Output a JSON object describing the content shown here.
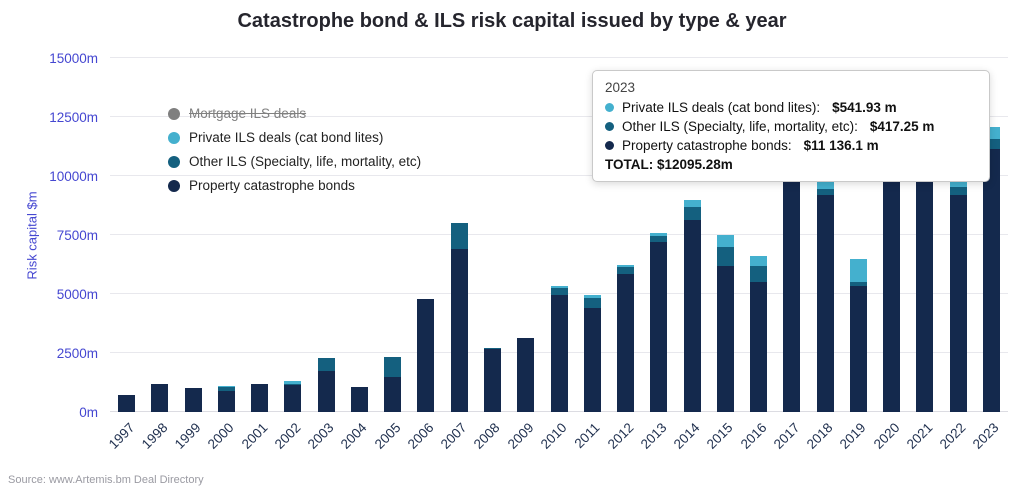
{
  "source": "Source: www.Artemis.bm Deal Directory",
  "legend": {
    "items": [
      {
        "id": "mortgage-ils",
        "label": "Mortgage ILS deals",
        "color": "#7f7f7f",
        "struck": true
      },
      {
        "id": "private-ils",
        "label": "Private ILS deals (cat bond lites)",
        "color": "#44b0ce",
        "struck": false
      },
      {
        "id": "other-ils",
        "label": "Other ILS (Specialty, life, mortality, etc)",
        "color": "#14607f",
        "struck": false
      },
      {
        "id": "property-cat-bonds",
        "label": "Property catastrophe bonds",
        "color": "#14294d",
        "struck": false
      }
    ]
  },
  "tooltip": {
    "year": "2023",
    "rows": [
      {
        "dot": "#44b0ce",
        "label": "Private ILS deals (cat bond lites):",
        "value": "$541.93 m"
      },
      {
        "dot": "#14607f",
        "label": "Other ILS (Specialty, life, mortality, etc):",
        "value": "$417.25 m"
      },
      {
        "dot": "#14294d",
        "label": "Property catastrophe bonds:",
        "value": "$11 136.1 m"
      }
    ],
    "total": "TOTAL: $12095.28m"
  },
  "chart_data": {
    "type": "bar",
    "stacked": true,
    "title": "Catastrophe bond & ILS risk capital issued by type & year",
    "ylabel": "Risk capital $m",
    "ylim": [
      0,
      15000
    ],
    "yticks": [
      "0m",
      "2500m",
      "5000m",
      "7500m",
      "10000m",
      "12500m",
      "15000m"
    ],
    "ytick_values": [
      0,
      2500,
      5000,
      7500,
      10000,
      12500,
      15000
    ],
    "grid": true,
    "legend_position": "top-left",
    "categories": [
      "1997",
      "1998",
      "1999",
      "2000",
      "2001",
      "2002",
      "2003",
      "2004",
      "2005",
      "2006",
      "2007",
      "2008",
      "2009",
      "2010",
      "2011",
      "2012",
      "2013",
      "2014",
      "2015",
      "2016",
      "2017",
      "2018",
      "2019",
      "2020",
      "2021",
      "2022",
      "2023"
    ],
    "series": [
      {
        "name": "Property catastrophe bonds",
        "color": "#14294d",
        "values": [
          700,
          1200,
          1000,
          900,
          1200,
          1150,
          1750,
          1050,
          1500,
          4800,
          6900,
          2650,
          3150,
          4950,
          4400,
          5850,
          7200,
          8150,
          6200,
          5500,
          10700,
          9200,
          5350,
          10400,
          10500,
          9200,
          11136.1
        ]
      },
      {
        "name": "Other ILS (Specialty, life, mortality, etc)",
        "color": "#14607f",
        "values": [
          0,
          0,
          0,
          150,
          0,
          50,
          550,
          0,
          850,
          0,
          1100,
          50,
          0,
          300,
          450,
          300,
          250,
          550,
          800,
          700,
          1100,
          250,
          150,
          200,
          1000,
          350,
          417.25
        ]
      },
      {
        "name": "Private ILS deals (cat bond lites)",
        "color": "#44b0ce",
        "values": [
          0,
          0,
          0,
          50,
          0,
          100,
          0,
          0,
          0,
          0,
          0,
          0,
          0,
          100,
          100,
          100,
          150,
          300,
          500,
          400,
          700,
          300,
          1000,
          400,
          900,
          400,
          541.93
        ]
      },
      {
        "name": "Mortgage ILS deals",
        "color": "#7f7f7f",
        "hidden": true,
        "values": [
          0,
          0,
          0,
          0,
          0,
          0,
          0,
          0,
          0,
          0,
          0,
          0,
          0,
          0,
          0,
          0,
          0,
          0,
          0,
          0,
          0,
          0,
          0,
          0,
          0,
          0,
          0
        ]
      }
    ]
  }
}
